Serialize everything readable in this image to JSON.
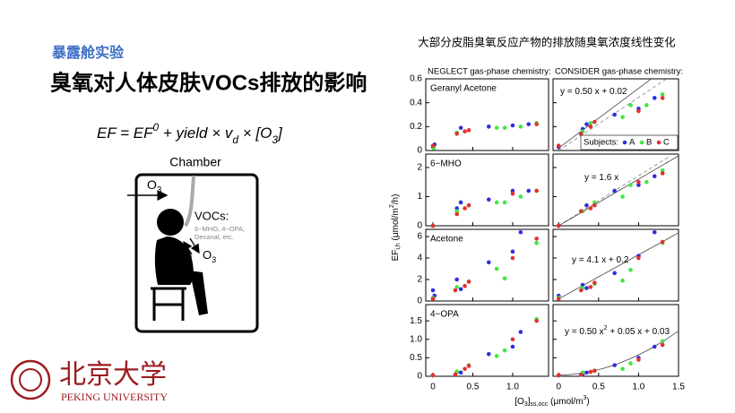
{
  "slide": {
    "section": "暴露舱实验",
    "title": "臭氧对人体皮肤VOCs排放的影响",
    "equation_parts": [
      "EF = EF",
      "0",
      " + yield × v",
      "d",
      " × [O",
      "3",
      "]"
    ],
    "diagram": {
      "chamber": "Chamber",
      "ozone_in": [
        "O",
        "3"
      ],
      "vocs": "VOCs:",
      "voc_list": [
        "6−MHO, 4−OPA,",
        "Decanal, etc."
      ],
      "ozone_skin": [
        "O",
        "3"
      ]
    },
    "logo": {
      "name_cn": "北京大学",
      "name_en": "PEKING UNIVERSITY"
    }
  },
  "figure": {
    "title": "大部分皮脂臭氧反应产物的排放随臭氧浓度线性变化",
    "column_titles": [
      "NEGLECT gas-phase chemistry:",
      "CONSIDER gas-phase chemistry:"
    ],
    "ylabel_parts": [
      "EF",
      "i,h",
      "  (μmol/m",
      "2",
      "/h)"
    ],
    "xlabel_parts": [
      "[O",
      "3",
      "]",
      "ss,occ",
      " (μmol/m",
      "3",
      ")"
    ],
    "legend": {
      "title": "Subjects:",
      "entries": [
        {
          "name": "A",
          "color": "#2e2ee0"
        },
        {
          "name": "B",
          "color": "#3fe83f"
        },
        {
          "name": "C",
          "color": "#e53030"
        }
      ]
    }
  },
  "chart_data": [
    {
      "type": "scatter",
      "label": "Geranyl Acetone",
      "xlim": [
        -0.09,
        1.45
      ],
      "ylim": [
        0,
        0.6
      ],
      "xticks": [
        0,
        0.5,
        {
          "value": 1,
          "label": "1.0"
        }
      ],
      "yticks": [
        0,
        0.2,
        0.4,
        0.6
      ],
      "series": [
        {
          "color": "#2e2ee0",
          "x": [
            0,
            0.02,
            0.35,
            0.7,
            1.0,
            1.2
          ],
          "values": [
            0.03,
            0.05,
            0.19,
            0.2,
            0.21,
            0.22
          ]
        },
        {
          "color": "#3fe83f",
          "x": [
            0.01,
            0.3,
            0.8,
            0.9,
            1.1,
            1.3
          ],
          "values": [
            0.02,
            0.15,
            0.19,
            0.19,
            0.2,
            0.23
          ]
        },
        {
          "color": "#e53030",
          "x": [
            0,
            0.3,
            0.4,
            0.45,
            1.3
          ],
          "values": [
            0.04,
            0.14,
            0.16,
            0.17,
            0.22
          ]
        }
      ]
    },
    {
      "type": "scatter",
      "equation_parts": [
        "y = 0.50 x + 0.02"
      ],
      "fit_coefficients": [
        0.5,
        0.02
      ],
      "dashed_line": {
        "x": [
          0,
          1.35
        ],
        "values": [
          0,
          0.6
        ]
      },
      "xlim": [
        -0.07,
        1.5
      ],
      "ylim": [
        0,
        0.6
      ],
      "xticks": [
        0,
        0.5,
        {
          "value": 1,
          "label": "1.0"
        },
        1.5
      ],
      "yticks": [
        0,
        0.2,
        0.4,
        0.6
      ],
      "series": [
        {
          "color": "#2e2ee0",
          "x": [
            0,
            0.3,
            0.35,
            0.7,
            1.0,
            1.2
          ],
          "values": [
            0.03,
            0.18,
            0.22,
            0.3,
            0.35,
            0.44
          ]
        },
        {
          "color": "#3fe83f",
          "x": [
            0.3,
            0.4,
            0.8,
            0.9,
            1.1,
            1.3
          ],
          "values": [
            0.16,
            0.23,
            0.28,
            0.38,
            0.38,
            0.47
          ]
        },
        {
          "color": "#e53030",
          "x": [
            0,
            0.28,
            0.4,
            0.45,
            1.0,
            1.3
          ],
          "values": [
            0.04,
            0.14,
            0.2,
            0.24,
            0.33,
            0.44
          ]
        }
      ]
    },
    {
      "type": "scatter",
      "label": "6−MHO",
      "xlim": [
        -0.09,
        1.45
      ],
      "ylim": [
        0,
        2.46
      ],
      "xticks": [
        0,
        0.5,
        {
          "value": 1,
          "label": "1.0"
        }
      ],
      "yticks": [
        0,
        1,
        2
      ],
      "series": [
        {
          "color": "#2e2ee0",
          "x": [
            0,
            0.3,
            0.35,
            0.7,
            1.0,
            1.2
          ],
          "values": [
            0,
            0.6,
            0.8,
            0.9,
            1.2,
            1.2
          ]
        },
        {
          "color": "#3fe83f",
          "x": [
            0,
            0.3,
            0.45,
            0.8,
            0.9,
            1.1,
            1.3
          ],
          "values": [
            0,
            0.5,
            0.7,
            0.8,
            0.8,
            1.0,
            1.2
          ]
        },
        {
          "color": "#e53030",
          "x": [
            0,
            0.3,
            0.4,
            0.45,
            1.0,
            1.3
          ],
          "values": [
            0,
            0.4,
            0.6,
            0.7,
            1.1,
            1.2
          ]
        }
      ]
    },
    {
      "type": "scatter",
      "equation_parts": [
        "y = 1.6 x"
      ],
      "fit_coefficients": [
        1.6,
        0
      ],
      "dashed_line": {
        "x": [
          0,
          1.4
        ],
        "values": [
          0,
          2.4
        ]
      },
      "xlim": [
        -0.07,
        1.5
      ],
      "ylim": [
        0,
        2.46
      ],
      "xticks": [
        0,
        0.5,
        {
          "value": 1,
          "label": "1.0"
        },
        1.5
      ],
      "yticks": [
        0,
        1,
        2
      ],
      "series": [
        {
          "color": "#2e2ee0",
          "x": [
            0,
            0.3,
            0.35,
            0.7,
            1.0,
            1.2
          ],
          "values": [
            0,
            0.5,
            0.7,
            1.2,
            1.4,
            1.7
          ]
        },
        {
          "color": "#3fe83f",
          "x": [
            0.3,
            0.45,
            0.8,
            0.9,
            1.1,
            1.3
          ],
          "values": [
            0.5,
            0.8,
            1.0,
            1.4,
            1.5,
            1.9
          ]
        },
        {
          "color": "#e53030",
          "x": [
            0,
            0.28,
            0.4,
            0.45,
            1.0,
            1.3
          ],
          "values": [
            0,
            0.5,
            0.6,
            0.7,
            1.5,
            1.8
          ]
        }
      ]
    },
    {
      "type": "scatter",
      "label": "Acetone",
      "xlim": [
        -0.09,
        1.45
      ],
      "ylim": [
        0,
        6.67
      ],
      "xticks": [
        0,
        0.5,
        {
          "value": 1,
          "label": "1.0"
        }
      ],
      "yticks": [
        0,
        2,
        4,
        6
      ],
      "series": [
        {
          "color": "#2e2ee0",
          "x": [
            0,
            0.02,
            0.3,
            0.35,
            0.7,
            1.0,
            1.1
          ],
          "values": [
            1.0,
            0.5,
            2.0,
            1.1,
            3.6,
            4.6,
            6.4
          ]
        },
        {
          "color": "#3fe83f",
          "x": [
            0,
            0.3,
            0.45,
            0.8,
            0.9,
            1.3
          ],
          "values": [
            0.3,
            1.3,
            1.8,
            3.0,
            2.1,
            5.4
          ]
        },
        {
          "color": "#e53030",
          "x": [
            0,
            0.28,
            0.4,
            0.45,
            1.0,
            1.3
          ],
          "values": [
            0.2,
            1.0,
            1.4,
            1.8,
            4.0,
            5.8
          ]
        }
      ]
    },
    {
      "type": "scatter",
      "equation_parts": [
        "y = 4.1 x + 0.2"
      ],
      "fit_coefficients": [
        4.1,
        0.2
      ],
      "xlim": [
        -0.07,
        1.5
      ],
      "ylim": [
        0,
        6.67
      ],
      "xticks": [
        0,
        0.5,
        {
          "value": 1,
          "label": "1.0"
        },
        1.5
      ],
      "yticks": [
        0,
        2,
        4,
        6
      ],
      "series": [
        {
          "color": "#2e2ee0",
          "x": [
            0,
            0.3,
            0.35,
            0.7,
            1.0,
            1.2
          ],
          "values": [
            0.5,
            1.5,
            1.2,
            2.6,
            4.2,
            6.4
          ]
        },
        {
          "color": "#3fe83f",
          "x": [
            0,
            0.3,
            0.45,
            0.8,
            0.9,
            1.3
          ],
          "values": [
            0.3,
            1.2,
            1.6,
            1.9,
            2.9,
            5.4
          ]
        },
        {
          "color": "#e53030",
          "x": [
            0,
            0.28,
            0.4,
            0.45,
            1.0,
            1.3
          ],
          "values": [
            0.2,
            1.0,
            1.3,
            1.7,
            4.0,
            5.5
          ]
        }
      ]
    },
    {
      "type": "scatter",
      "label": "4−OPA",
      "xlim": [
        -0.09,
        1.45
      ],
      "ylim": [
        0,
        1.94
      ],
      "xticks": [
        0,
        0.5,
        {
          "value": 1,
          "label": "1.0"
        }
      ],
      "yticks": [
        0,
        0.5,
        {
          "value": 1,
          "label": "1.0"
        },
        1.5
      ],
      "series": [
        {
          "color": "#2e2ee0",
          "x": [
            0,
            0.3,
            0.35,
            0.7,
            1.0,
            1.1
          ],
          "values": [
            0.02,
            0.12,
            0.1,
            0.6,
            0.8,
            1.2
          ]
        },
        {
          "color": "#3fe83f",
          "x": [
            0,
            0.3,
            0.45,
            0.8,
            0.9,
            1.3
          ],
          "values": [
            0.02,
            0.13,
            0.3,
            0.55,
            0.7,
            1.55
          ]
        },
        {
          "color": "#e53030",
          "x": [
            0,
            0.28,
            0.4,
            0.45,
            1.0,
            1.3
          ],
          "values": [
            0.03,
            0.05,
            0.2,
            0.28,
            1.0,
            1.5
          ]
        }
      ]
    },
    {
      "type": "scatter",
      "equation_parts": [
        "y = 0.50 x",
        "2",
        " + 0.05 x + 0.03"
      ],
      "fit_coefficients": [
        0.5,
        0.05,
        0.03
      ],
      "xlim": [
        -0.07,
        1.5
      ],
      "ylim": [
        0,
        1.94
      ],
      "xticks": [
        0,
        0.5,
        {
          "value": 1,
          "label": "1.0"
        },
        1.5
      ],
      "yticks": [
        0,
        0.5,
        {
          "value": 1,
          "label": "1.0"
        },
        1.5
      ],
      "series": [
        {
          "color": "#2e2ee0",
          "x": [
            0,
            0.3,
            0.35,
            0.7,
            1.0,
            1.2
          ],
          "values": [
            0.02,
            0.05,
            0.1,
            0.3,
            0.5,
            0.8
          ]
        },
        {
          "color": "#3fe83f",
          "x": [
            0,
            0.3,
            0.45,
            0.8,
            0.9,
            1.3
          ],
          "values": [
            0.02,
            0.1,
            0.15,
            0.2,
            0.35,
            0.95
          ]
        },
        {
          "color": "#e53030",
          "x": [
            0,
            0.28,
            0.4,
            0.45,
            1.0,
            1.3
          ],
          "values": [
            0.03,
            0.04,
            0.12,
            0.15,
            0.45,
            0.85
          ]
        }
      ]
    }
  ]
}
